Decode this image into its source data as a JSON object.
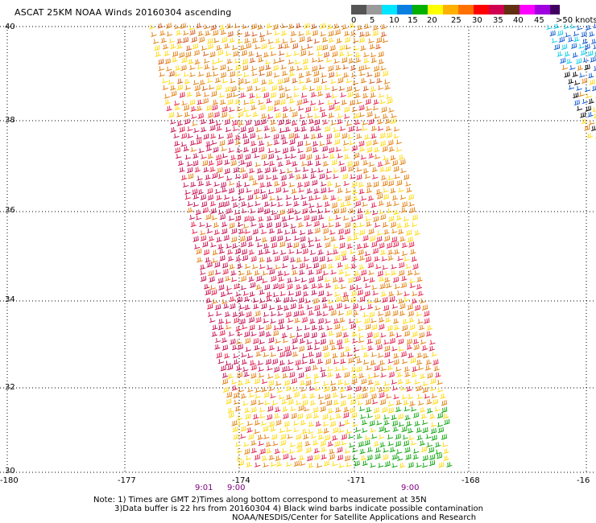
{
  "title": "ASCAT 25KM NOAA Winds 20160304 ascending",
  "legend": {
    "swatches": [
      "#555555",
      "#9a9a9a",
      "#00e5ff",
      "#0a7fe0",
      "#00b000",
      "#ffff00",
      "#ffb000",
      "#ff7000",
      "#ff0000",
      "#d00050",
      "#603010",
      "#ff00ff",
      "#a000e0",
      "#400060"
    ],
    "ticks": [
      "0",
      "5",
      "10",
      "15",
      "20",
      "25",
      "30",
      "35",
      "40",
      "45",
      ">50 knots"
    ]
  },
  "latitude_labels": [
    "40",
    "38",
    "36",
    "34",
    "32",
    "30"
  ],
  "longitude_labels": [
    "-180",
    "-177",
    "-174",
    "-171",
    "-168",
    "-16"
  ],
  "time_labels": [
    "9:01",
    "9:00",
    "9:00"
  ],
  "notes": [
    "Note: 1) Times are GMT 2)Times along bottom correspond to measurement at 35N",
    "3)Data buffer is 22 hrs from 20160304 4) Black wind barbs indicate possible contamination",
    "NOAA/NESDIS/Center for Satellite Applications and Research"
  ],
  "barb_colors": {
    "yellow": "#ffd800",
    "orange": "#e07800",
    "dark_orange": "#d05010",
    "red": "#e01040",
    "crimson": "#c00048",
    "green": "#00a000",
    "cyan": "#00c8e8",
    "blue": "#0050d0",
    "black": "#000000"
  }
}
